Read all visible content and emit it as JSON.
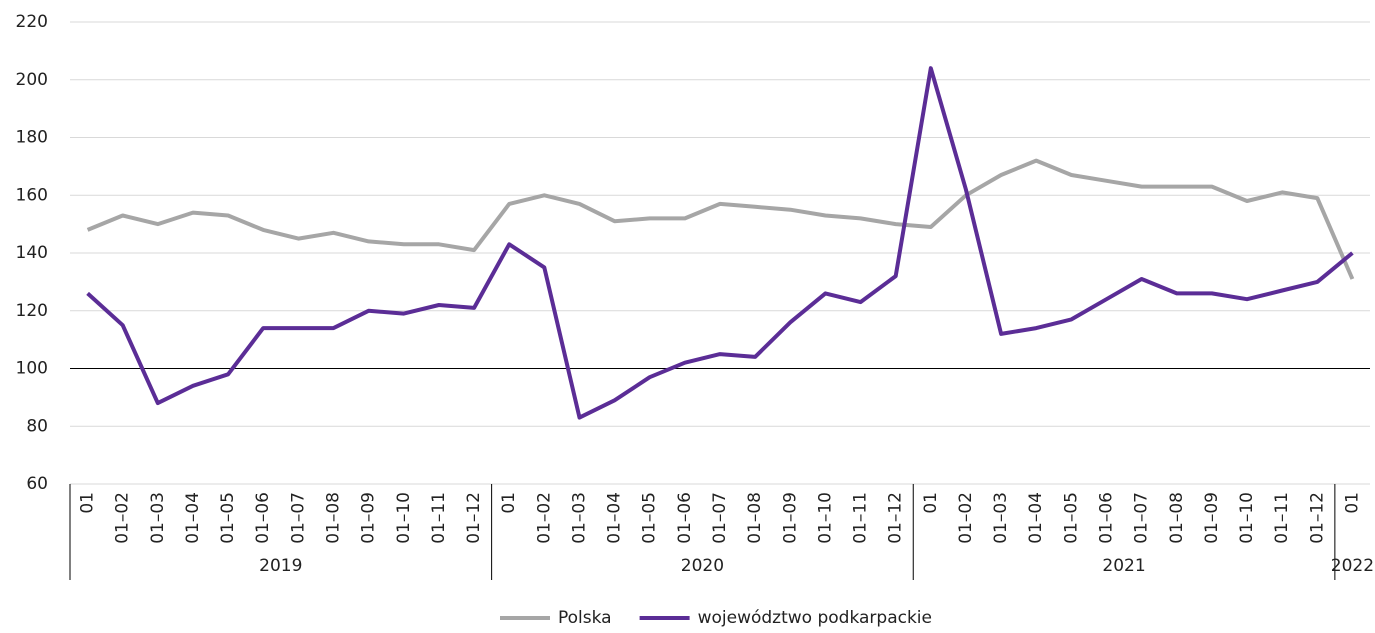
{
  "chart_data": {
    "type": "line",
    "category_groups": [
      {
        "name": "2019",
        "categories": [
          "01",
          "01–02",
          "01–03",
          "01–04",
          "01–05",
          "01–06",
          "01–07",
          "01–08",
          "01–09",
          "01–10",
          "01–11",
          "01–12"
        ]
      },
      {
        "name": "2020",
        "categories": [
          "01",
          "01–02",
          "01–03",
          "01–04",
          "01–05",
          "01–06",
          "01–07",
          "01–08",
          "01–09",
          "01–10",
          "01–11",
          "01–12"
        ]
      },
      {
        "name": "2021",
        "categories": [
          "01",
          "01–02",
          "01–03",
          "01–04",
          "01–05",
          "01–06",
          "01–07",
          "01–08",
          "01–09",
          "01–10",
          "01–11",
          "01–12"
        ]
      },
      {
        "name": "2022",
        "categories": [
          "01"
        ]
      }
    ],
    "series": [
      {
        "name": "Polska",
        "color": "#a6a6a6",
        "values": [
          148,
          153,
          150,
          154,
          153,
          148,
          145,
          147,
          144,
          143,
          143,
          141,
          157,
          160,
          157,
          151,
          152,
          152,
          157,
          156,
          155,
          153,
          152,
          150,
          149,
          160,
          167,
          172,
          167,
          165,
          163,
          163,
          163,
          158,
          161,
          159,
          131
        ]
      },
      {
        "name": "województwo podkarpackie",
        "color": "#5b2d96",
        "values": [
          126,
          115,
          88,
          94,
          98,
          114,
          114,
          114,
          120,
          119,
          122,
          121,
          143,
          135,
          83,
          89,
          97,
          102,
          105,
          104,
          116,
          126,
          123,
          132,
          204,
          162,
          112,
          114,
          117,
          124,
          131,
          126,
          126,
          124,
          127,
          130,
          140
        ]
      }
    ],
    "ylim": [
      60,
      220
    ],
    "yticks": [
      60,
      80,
      100,
      120,
      140,
      160,
      180,
      200,
      220
    ],
    "grid": true,
    "reference_line": 100,
    "legend": "bottom"
  }
}
